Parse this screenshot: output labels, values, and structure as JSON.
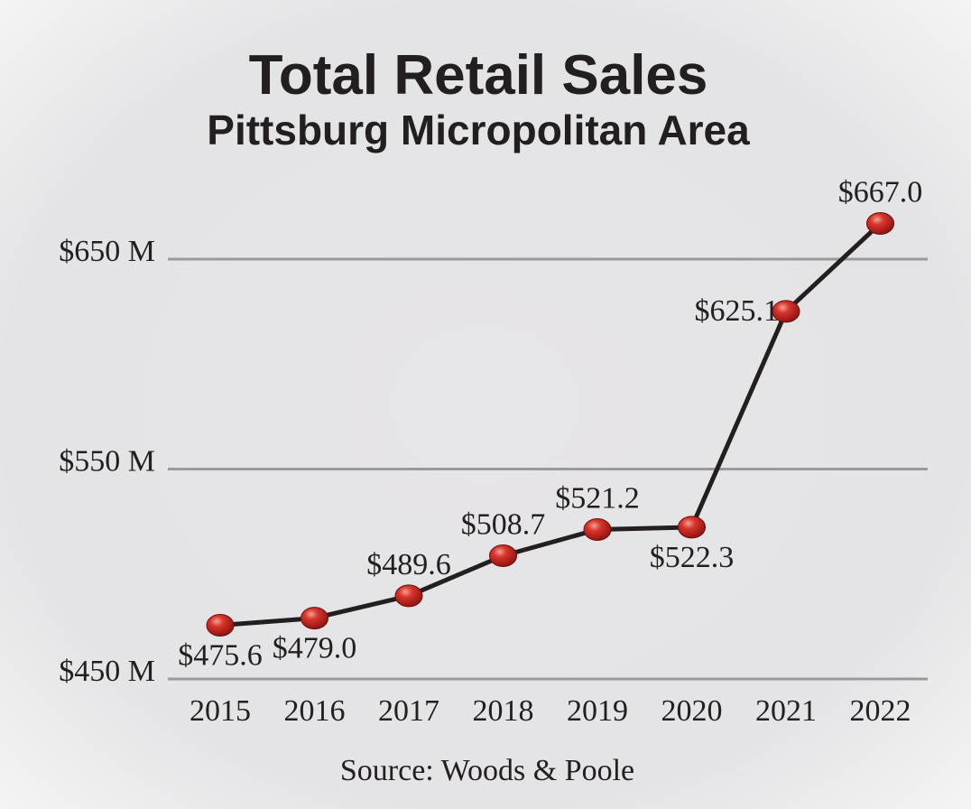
{
  "chart_data": {
    "type": "line",
    "title": "Total Retail Sales",
    "subtitle": "Pittsburg Micropolitan Area",
    "source": "Source: Woods & Poole",
    "x": [
      "2015",
      "2016",
      "2017",
      "2018",
      "2019",
      "2020",
      "2021",
      "2022"
    ],
    "values": [
      475.6,
      479.0,
      489.6,
      508.7,
      521.2,
      522.3,
      625.1,
      667.0
    ],
    "data_labels": [
      "$475.6",
      "$479.0",
      "$489.6",
      "$508.7",
      "$521.2",
      "$522.3",
      "$625.1",
      "$667.0"
    ],
    "label_placement": [
      "below",
      "below",
      "above",
      "above",
      "above",
      "below",
      "left",
      "above"
    ],
    "y_ticks": [
      450,
      550,
      650
    ],
    "y_tick_labels": [
      "$450 M",
      "$550 M",
      "$650 M"
    ],
    "ylim": [
      450,
      667
    ],
    "grid": true,
    "colors": {
      "line": "#231f20",
      "marker": "#c8201f",
      "marker_highlight": "#f08a7e",
      "gridline": "#9a999c",
      "background": "#e5e4e6"
    }
  }
}
